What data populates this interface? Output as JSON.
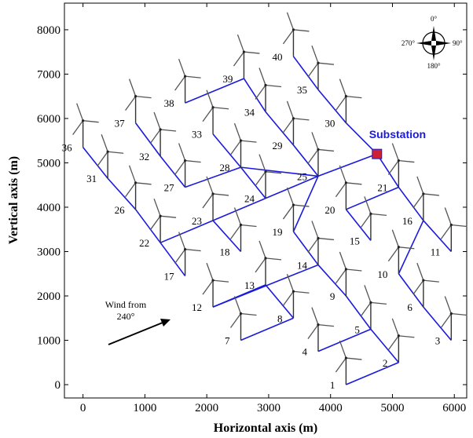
{
  "chart_data": {
    "type": "scatter",
    "xlabel": "Horizontal axis (m)",
    "ylabel": "Vertical axis (m)",
    "xlim": [
      -300,
      6200
    ],
    "ylim": [
      -300,
      8600
    ],
    "x_ticks": [
      0,
      1000,
      2000,
      3000,
      4000,
      5000,
      6000
    ],
    "y_ticks": [
      0,
      1000,
      2000,
      3000,
      4000,
      5000,
      6000,
      7000,
      8000
    ],
    "turbines": [
      {
        "id": "1",
        "x": 4250,
        "y": 0
      },
      {
        "id": "2",
        "x": 5100,
        "y": 500
      },
      {
        "id": "3",
        "x": 5950,
        "y": 1000
      },
      {
        "id": "4",
        "x": 3800,
        "y": 750
      },
      {
        "id": "5",
        "x": 4650,
        "y": 1250
      },
      {
        "id": "6",
        "x": 5500,
        "y": 1750
      },
      {
        "id": "7",
        "x": 2550,
        "y": 1000
      },
      {
        "id": "8",
        "x": 3400,
        "y": 1500
      },
      {
        "id": "9",
        "x": 4250,
        "y": 2000
      },
      {
        "id": "10",
        "x": 5100,
        "y": 2500
      },
      {
        "id": "11",
        "x": 5950,
        "y": 3000
      },
      {
        "id": "12",
        "x": 2100,
        "y": 1750
      },
      {
        "id": "13",
        "x": 2950,
        "y": 2250
      },
      {
        "id": "14",
        "x": 3800,
        "y": 2700
      },
      {
        "id": "15",
        "x": 4650,
        "y": 3250
      },
      {
        "id": "16",
        "x": 5500,
        "y": 3700
      },
      {
        "id": "17",
        "x": 1650,
        "y": 2450
      },
      {
        "id": "18",
        "x": 2550,
        "y": 3000
      },
      {
        "id": "19",
        "x": 3400,
        "y": 3450
      },
      {
        "id": "20",
        "x": 4250,
        "y": 3950
      },
      {
        "id": "21",
        "x": 5100,
        "y": 4450
      },
      {
        "id": "22",
        "x": 1250,
        "y": 3200
      },
      {
        "id": "23",
        "x": 2100,
        "y": 3700
      },
      {
        "id": "24",
        "x": 2950,
        "y": 4200
      },
      {
        "id": "25",
        "x": 3800,
        "y": 4700
      },
      {
        "id": "26",
        "x": 850,
        "y": 3950
      },
      {
        "id": "27",
        "x": 1650,
        "y": 4450
      },
      {
        "id": "28",
        "x": 2550,
        "y": 4900
      },
      {
        "id": "29",
        "x": 3400,
        "y": 5400
      },
      {
        "id": "30",
        "x": 4250,
        "y": 5900
      },
      {
        "id": "31",
        "x": 400,
        "y": 4650
      },
      {
        "id": "32",
        "x": 1250,
        "y": 5150
      },
      {
        "id": "33",
        "x": 2100,
        "y": 5650
      },
      {
        "id": "34",
        "x": 2950,
        "y": 6150
      },
      {
        "id": "35",
        "x": 3800,
        "y": 6650
      },
      {
        "id": "36",
        "x": 0,
        "y": 5350
      },
      {
        "id": "37",
        "x": 850,
        "y": 5900
      },
      {
        "id": "38",
        "x": 1650,
        "y": 6350
      },
      {
        "id": "39",
        "x": 2600,
        "y": 6900
      },
      {
        "id": "40",
        "x": 3400,
        "y": 7400
      }
    ],
    "substation": {
      "label": "Substation",
      "x": 4750,
      "y": 5200,
      "color": "#cc2233"
    },
    "cable_color": "#1a1adf",
    "cables": [
      [
        "1",
        "2"
      ],
      [
        "2",
        "5"
      ],
      [
        "5",
        "4"
      ],
      [
        "5",
        "9"
      ],
      [
        "9",
        "14"
      ],
      [
        "14",
        "19"
      ],
      [
        "19",
        "25"
      ],
      [
        "3",
        "6"
      ],
      [
        "6",
        "10"
      ],
      [
        "10",
        "16"
      ],
      [
        "16",
        "21"
      ],
      [
        "11",
        "16"
      ],
      [
        "21",
        "S"
      ],
      [
        "21",
        "20"
      ],
      [
        "20",
        "15"
      ],
      [
        "7",
        "8"
      ],
      [
        "8",
        "13"
      ],
      [
        "13",
        "12"
      ],
      [
        "12",
        "14"
      ],
      [
        "17",
        "22"
      ],
      [
        "22",
        "26"
      ],
      [
        "26",
        "31"
      ],
      [
        "31",
        "36"
      ],
      [
        "22",
        "24"
      ],
      [
        "24",
        "25"
      ],
      [
        "18",
        "23"
      ],
      [
        "27",
        "32"
      ],
      [
        "32",
        "37"
      ],
      [
        "27",
        "28"
      ],
      [
        "28",
        "33"
      ],
      [
        "28",
        "25"
      ],
      [
        "28",
        "24"
      ],
      [
        "25",
        "S"
      ],
      [
        "29",
        "34"
      ],
      [
        "34",
        "39"
      ],
      [
        "39",
        "38"
      ],
      [
        "29",
        "25"
      ],
      [
        "40",
        "35"
      ],
      [
        "35",
        "30"
      ],
      [
        "30",
        "S"
      ]
    ],
    "wind_annotation": {
      "line1": "Wind from",
      "line2": "240°",
      "direction_deg": 240
    },
    "compass": {
      "n": "0°",
      "e": "90°",
      "s": "180°",
      "w": "270°"
    }
  }
}
